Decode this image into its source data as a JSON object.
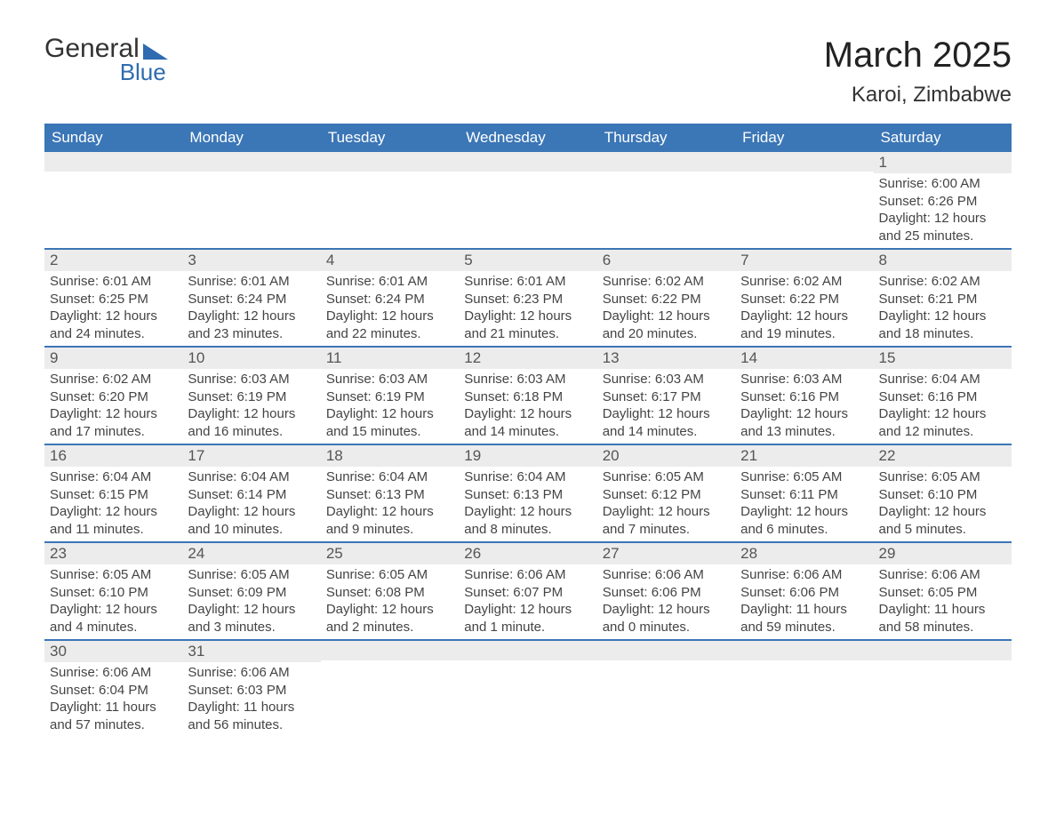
{
  "logo": {
    "text1": "General",
    "text2": "Blue"
  },
  "title": "March 2025",
  "location": "Karoi, Zimbabwe",
  "colors": {
    "header_bg": "#3b76b6",
    "header_text": "#ffffff",
    "row_border": "#3b76b6",
    "daynum_bg": "#ececec",
    "logo_accent": "#2e6bb0"
  },
  "weekdays": [
    "Sunday",
    "Monday",
    "Tuesday",
    "Wednesday",
    "Thursday",
    "Friday",
    "Saturday"
  ],
  "weeks": [
    [
      {
        "n": "",
        "sr": "",
        "ss": "",
        "dl": ""
      },
      {
        "n": "",
        "sr": "",
        "ss": "",
        "dl": ""
      },
      {
        "n": "",
        "sr": "",
        "ss": "",
        "dl": ""
      },
      {
        "n": "",
        "sr": "",
        "ss": "",
        "dl": ""
      },
      {
        "n": "",
        "sr": "",
        "ss": "",
        "dl": ""
      },
      {
        "n": "",
        "sr": "",
        "ss": "",
        "dl": ""
      },
      {
        "n": "1",
        "sr": "Sunrise: 6:00 AM",
        "ss": "Sunset: 6:26 PM",
        "dl": "Daylight: 12 hours and 25 minutes."
      }
    ],
    [
      {
        "n": "2",
        "sr": "Sunrise: 6:01 AM",
        "ss": "Sunset: 6:25 PM",
        "dl": "Daylight: 12 hours and 24 minutes."
      },
      {
        "n": "3",
        "sr": "Sunrise: 6:01 AM",
        "ss": "Sunset: 6:24 PM",
        "dl": "Daylight: 12 hours and 23 minutes."
      },
      {
        "n": "4",
        "sr": "Sunrise: 6:01 AM",
        "ss": "Sunset: 6:24 PM",
        "dl": "Daylight: 12 hours and 22 minutes."
      },
      {
        "n": "5",
        "sr": "Sunrise: 6:01 AM",
        "ss": "Sunset: 6:23 PM",
        "dl": "Daylight: 12 hours and 21 minutes."
      },
      {
        "n": "6",
        "sr": "Sunrise: 6:02 AM",
        "ss": "Sunset: 6:22 PM",
        "dl": "Daylight: 12 hours and 20 minutes."
      },
      {
        "n": "7",
        "sr": "Sunrise: 6:02 AM",
        "ss": "Sunset: 6:22 PM",
        "dl": "Daylight: 12 hours and 19 minutes."
      },
      {
        "n": "8",
        "sr": "Sunrise: 6:02 AM",
        "ss": "Sunset: 6:21 PM",
        "dl": "Daylight: 12 hours and 18 minutes."
      }
    ],
    [
      {
        "n": "9",
        "sr": "Sunrise: 6:02 AM",
        "ss": "Sunset: 6:20 PM",
        "dl": "Daylight: 12 hours and 17 minutes."
      },
      {
        "n": "10",
        "sr": "Sunrise: 6:03 AM",
        "ss": "Sunset: 6:19 PM",
        "dl": "Daylight: 12 hours and 16 minutes."
      },
      {
        "n": "11",
        "sr": "Sunrise: 6:03 AM",
        "ss": "Sunset: 6:19 PM",
        "dl": "Daylight: 12 hours and 15 minutes."
      },
      {
        "n": "12",
        "sr": "Sunrise: 6:03 AM",
        "ss": "Sunset: 6:18 PM",
        "dl": "Daylight: 12 hours and 14 minutes."
      },
      {
        "n": "13",
        "sr": "Sunrise: 6:03 AM",
        "ss": "Sunset: 6:17 PM",
        "dl": "Daylight: 12 hours and 14 minutes."
      },
      {
        "n": "14",
        "sr": "Sunrise: 6:03 AM",
        "ss": "Sunset: 6:16 PM",
        "dl": "Daylight: 12 hours and 13 minutes."
      },
      {
        "n": "15",
        "sr": "Sunrise: 6:04 AM",
        "ss": "Sunset: 6:16 PM",
        "dl": "Daylight: 12 hours and 12 minutes."
      }
    ],
    [
      {
        "n": "16",
        "sr": "Sunrise: 6:04 AM",
        "ss": "Sunset: 6:15 PM",
        "dl": "Daylight: 12 hours and 11 minutes."
      },
      {
        "n": "17",
        "sr": "Sunrise: 6:04 AM",
        "ss": "Sunset: 6:14 PM",
        "dl": "Daylight: 12 hours and 10 minutes."
      },
      {
        "n": "18",
        "sr": "Sunrise: 6:04 AM",
        "ss": "Sunset: 6:13 PM",
        "dl": "Daylight: 12 hours and 9 minutes."
      },
      {
        "n": "19",
        "sr": "Sunrise: 6:04 AM",
        "ss": "Sunset: 6:13 PM",
        "dl": "Daylight: 12 hours and 8 minutes."
      },
      {
        "n": "20",
        "sr": "Sunrise: 6:05 AM",
        "ss": "Sunset: 6:12 PM",
        "dl": "Daylight: 12 hours and 7 minutes."
      },
      {
        "n": "21",
        "sr": "Sunrise: 6:05 AM",
        "ss": "Sunset: 6:11 PM",
        "dl": "Daylight: 12 hours and 6 minutes."
      },
      {
        "n": "22",
        "sr": "Sunrise: 6:05 AM",
        "ss": "Sunset: 6:10 PM",
        "dl": "Daylight: 12 hours and 5 minutes."
      }
    ],
    [
      {
        "n": "23",
        "sr": "Sunrise: 6:05 AM",
        "ss": "Sunset: 6:10 PM",
        "dl": "Daylight: 12 hours and 4 minutes."
      },
      {
        "n": "24",
        "sr": "Sunrise: 6:05 AM",
        "ss": "Sunset: 6:09 PM",
        "dl": "Daylight: 12 hours and 3 minutes."
      },
      {
        "n": "25",
        "sr": "Sunrise: 6:05 AM",
        "ss": "Sunset: 6:08 PM",
        "dl": "Daylight: 12 hours and 2 minutes."
      },
      {
        "n": "26",
        "sr": "Sunrise: 6:06 AM",
        "ss": "Sunset: 6:07 PM",
        "dl": "Daylight: 12 hours and 1 minute."
      },
      {
        "n": "27",
        "sr": "Sunrise: 6:06 AM",
        "ss": "Sunset: 6:06 PM",
        "dl": "Daylight: 12 hours and 0 minutes."
      },
      {
        "n": "28",
        "sr": "Sunrise: 6:06 AM",
        "ss": "Sunset: 6:06 PM",
        "dl": "Daylight: 11 hours and 59 minutes."
      },
      {
        "n": "29",
        "sr": "Sunrise: 6:06 AM",
        "ss": "Sunset: 6:05 PM",
        "dl": "Daylight: 11 hours and 58 minutes."
      }
    ],
    [
      {
        "n": "30",
        "sr": "Sunrise: 6:06 AM",
        "ss": "Sunset: 6:04 PM",
        "dl": "Daylight: 11 hours and 57 minutes."
      },
      {
        "n": "31",
        "sr": "Sunrise: 6:06 AM",
        "ss": "Sunset: 6:03 PM",
        "dl": "Daylight: 11 hours and 56 minutes."
      },
      {
        "n": "",
        "sr": "",
        "ss": "",
        "dl": ""
      },
      {
        "n": "",
        "sr": "",
        "ss": "",
        "dl": ""
      },
      {
        "n": "",
        "sr": "",
        "ss": "",
        "dl": ""
      },
      {
        "n": "",
        "sr": "",
        "ss": "",
        "dl": ""
      },
      {
        "n": "",
        "sr": "",
        "ss": "",
        "dl": ""
      }
    ]
  ]
}
